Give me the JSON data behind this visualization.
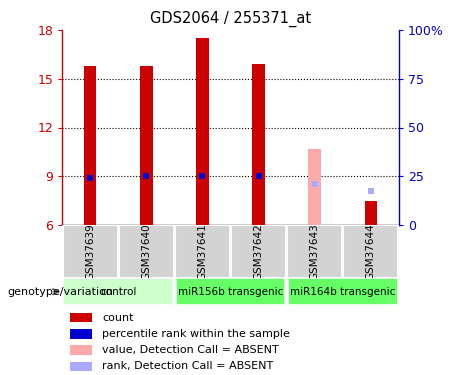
{
  "title": "GDS2064 / 255371_at",
  "samples": [
    "GSM37639",
    "GSM37640",
    "GSM37641",
    "GSM37642",
    "GSM37643",
    "GSM37644"
  ],
  "groups": [
    {
      "label": "control",
      "color": "#ccffcc",
      "start": 0,
      "end": 1
    },
    {
      "label": "miR156b transgenic",
      "color": "#66ff66",
      "start": 2,
      "end": 3
    },
    {
      "label": "miR164b transgenic",
      "color": "#66ff66",
      "start": 4,
      "end": 5
    }
  ],
  "count_values": [
    15.8,
    15.8,
    17.5,
    15.9,
    null,
    7.5
  ],
  "count_absent_values": [
    null,
    null,
    null,
    null,
    10.7,
    null
  ],
  "rank_values": [
    8.9,
    9.0,
    9.0,
    9.0,
    null,
    null
  ],
  "rank_absent_values": [
    null,
    null,
    null,
    null,
    8.55,
    8.1
  ],
  "ylim_left": [
    6,
    18
  ],
  "ylim_right": [
    0,
    100
  ],
  "yticks_left": [
    6,
    9,
    12,
    15,
    18
  ],
  "yticks_right": [
    0,
    25,
    50,
    75,
    100
  ],
  "ytick_right_labels": [
    "0",
    "25",
    "50",
    "75",
    "100%"
  ],
  "count_color": "#cc0000",
  "rank_color": "#0000cc",
  "absent_count_color": "#ffaaaa",
  "absent_rank_color": "#aaaaff",
  "left_axis_color": "#cc0000",
  "right_axis_color": "#0000cc",
  "plot_bg_color": "white",
  "bar_width": 0.22,
  "group_colors": [
    "#ccffcc",
    "#66ff66",
    "#66ff66"
  ],
  "group_starts": [
    -0.5,
    1.5,
    3.5
  ],
  "group_centers": [
    0.5,
    2.5,
    4.5
  ],
  "legend_items": [
    {
      "color": "#cc0000",
      "label": "count"
    },
    {
      "color": "#0000cc",
      "label": "percentile rank within the sample"
    },
    {
      "color": "#ffaaaa",
      "label": "value, Detection Call = ABSENT"
    },
    {
      "color": "#aaaaff",
      "label": "rank, Detection Call = ABSENT"
    }
  ]
}
